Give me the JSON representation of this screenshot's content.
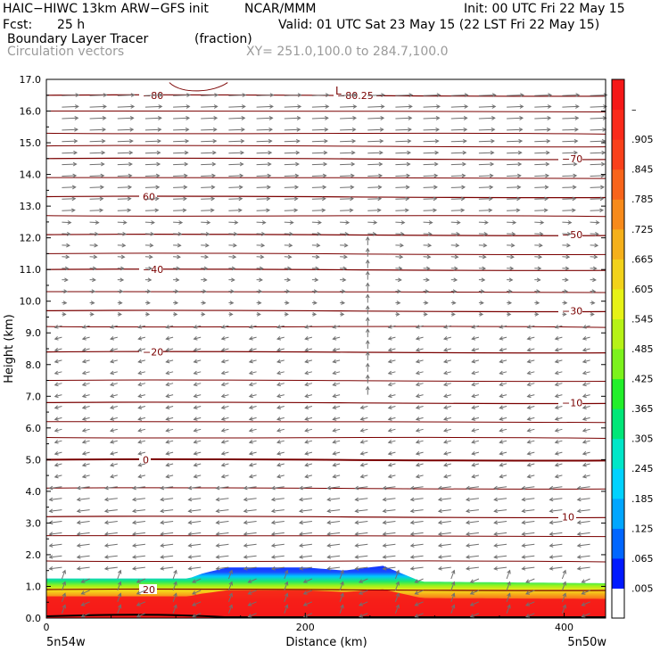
{
  "header": {
    "model": "HAIC−HIWC 13km ARW−GFS init",
    "org": "NCAR/MMM",
    "init": "Init: 00 UTC Fri 22 May 15",
    "fcst_label": "Fcst:",
    "fcst_value": "25 h",
    "valid": "Valid: 01 UTC Sat 23 May 15 (22 LST Fri 22 May 15)",
    "field_name": "Boundary Layer Tracer",
    "field_units": "(fraction)",
    "vector_name": "Circulation vectors",
    "cross_section": "XY= 251.0,100.0 to 284.7,100.0"
  },
  "chart_data": {
    "type": "cross-section",
    "ylabel": "Height (km)",
    "xlabel": "Distance (km)",
    "xlim": [
      0,
      432
    ],
    "ylim": [
      0,
      17
    ],
    "x_ticks": [
      "0",
      "200",
      "400"
    ],
    "y_ticks": [
      "0.0",
      "1.0",
      "2.0",
      "3.0",
      "4.0",
      "5.0",
      "6.0",
      "7.0",
      "8.0",
      "9.0",
      "10.0",
      "11.0",
      "12.0",
      "13.0",
      "14.0",
      "15.0",
      "16.0",
      "17.0"
    ],
    "x_endpoints": {
      "left": "5n54w",
      "right": "5n50w"
    },
    "colorbar": {
      "labels": [
        ".005",
        ".065",
        ".125",
        ".185",
        ".245",
        ".305",
        ".365",
        ".425",
        ".485",
        ".545",
        ".605",
        ".665",
        ".725",
        ".785",
        ".845",
        ".905",
        "–"
      ],
      "colors": [
        "#ffffff",
        "#0019ff",
        "#0066ff",
        "#00a6ff",
        "#00d2ff",
        "#00e6c8",
        "#00e678",
        "#22ef2a",
        "#7cf21c",
        "#b6f216",
        "#e6f216",
        "#f2d21a",
        "#f5b01a",
        "#f78a1a",
        "#f8641a",
        "#f9401a",
        "#fa2a1a",
        "#f51818"
      ]
    },
    "temperature_contours": [
      {
        "label": "20",
        "height": 0.9
      },
      {
        "label": "10",
        "height": 3.2
      },
      {
        "label": "0",
        "height": 5.0
      },
      {
        "label": "−10",
        "height": 6.8
      },
      {
        "label": "−20",
        "height": 8.4
      },
      {
        "label": "−30",
        "height": 9.7
      },
      {
        "label": "−40",
        "height": 11.0
      },
      {
        "label": "−50",
        "height": 12.1
      },
      {
        "label": "60",
        "height": 13.3
      },
      {
        "label": "−70",
        "height": 14.5
      },
      {
        "label": "−80",
        "height": 16.5
      },
      {
        "label": "−80.25",
        "height": 16.5
      }
    ],
    "boundary_layer_top_km": [
      {
        "x": 0,
        "top": 1.25
      },
      {
        "x": 110,
        "top": 1.25
      },
      {
        "x": 120,
        "top": 1.4
      },
      {
        "x": 140,
        "top": 1.6
      },
      {
        "x": 200,
        "top": 1.6
      },
      {
        "x": 230,
        "top": 1.5
      },
      {
        "x": 260,
        "top": 1.65
      },
      {
        "x": 290,
        "top": 1.15
      },
      {
        "x": 432,
        "top": 1.1
      }
    ],
    "high_label": "L",
    "grid": false,
    "legend_position": "right"
  }
}
